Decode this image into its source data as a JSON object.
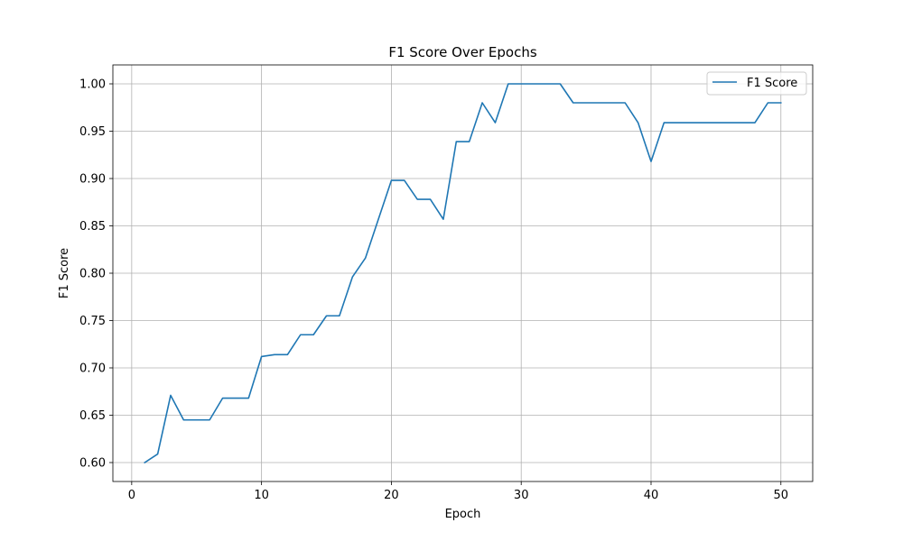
{
  "chart_data": {
    "type": "line",
    "title": "F1 Score Over Epochs",
    "xlabel": "Epoch",
    "ylabel": "F1 Score",
    "xlim": [
      -1.45,
      52.45
    ],
    "ylim": [
      0.58,
      1.02
    ],
    "grid": true,
    "legend_position": "top-right",
    "x_ticks": [
      0,
      10,
      20,
      30,
      40,
      50
    ],
    "x_tick_labels": [
      "0",
      "10",
      "20",
      "30",
      "40",
      "50"
    ],
    "y_ticks": [
      0.6,
      0.65,
      0.7,
      0.75,
      0.8,
      0.85,
      0.9,
      0.95,
      1.0
    ],
    "y_tick_labels": [
      "0.60",
      "0.65",
      "0.70",
      "0.75",
      "0.80",
      "0.85",
      "0.90",
      "0.95",
      "1.00"
    ],
    "series": [
      {
        "name": "F1 Score",
        "color": "#1f77b4",
        "x": [
          1,
          2,
          3,
          4,
          5,
          6,
          7,
          8,
          9,
          10,
          11,
          12,
          13,
          14,
          15,
          16,
          17,
          18,
          19,
          20,
          21,
          22,
          23,
          24,
          25,
          26,
          27,
          28,
          29,
          30,
          31,
          32,
          33,
          34,
          35,
          36,
          37,
          38,
          39,
          40,
          41,
          42,
          43,
          44,
          45,
          46,
          47,
          48,
          49,
          50
        ],
        "values": [
          0.6,
          0.609,
          0.671,
          0.645,
          0.645,
          0.645,
          0.668,
          0.668,
          0.668,
          0.712,
          0.714,
          0.714,
          0.735,
          0.735,
          0.755,
          0.755,
          0.796,
          0.816,
          0.857,
          0.898,
          0.898,
          0.878,
          0.878,
          0.857,
          0.939,
          0.939,
          0.98,
          0.959,
          1.0,
          1.0,
          1.0,
          1.0,
          1.0,
          0.98,
          0.98,
          0.98,
          0.98,
          0.98,
          0.959,
          0.918,
          0.959,
          0.959,
          0.959,
          0.959,
          0.959,
          0.959,
          0.959,
          0.959,
          0.98,
          0.98
        ]
      }
    ]
  }
}
